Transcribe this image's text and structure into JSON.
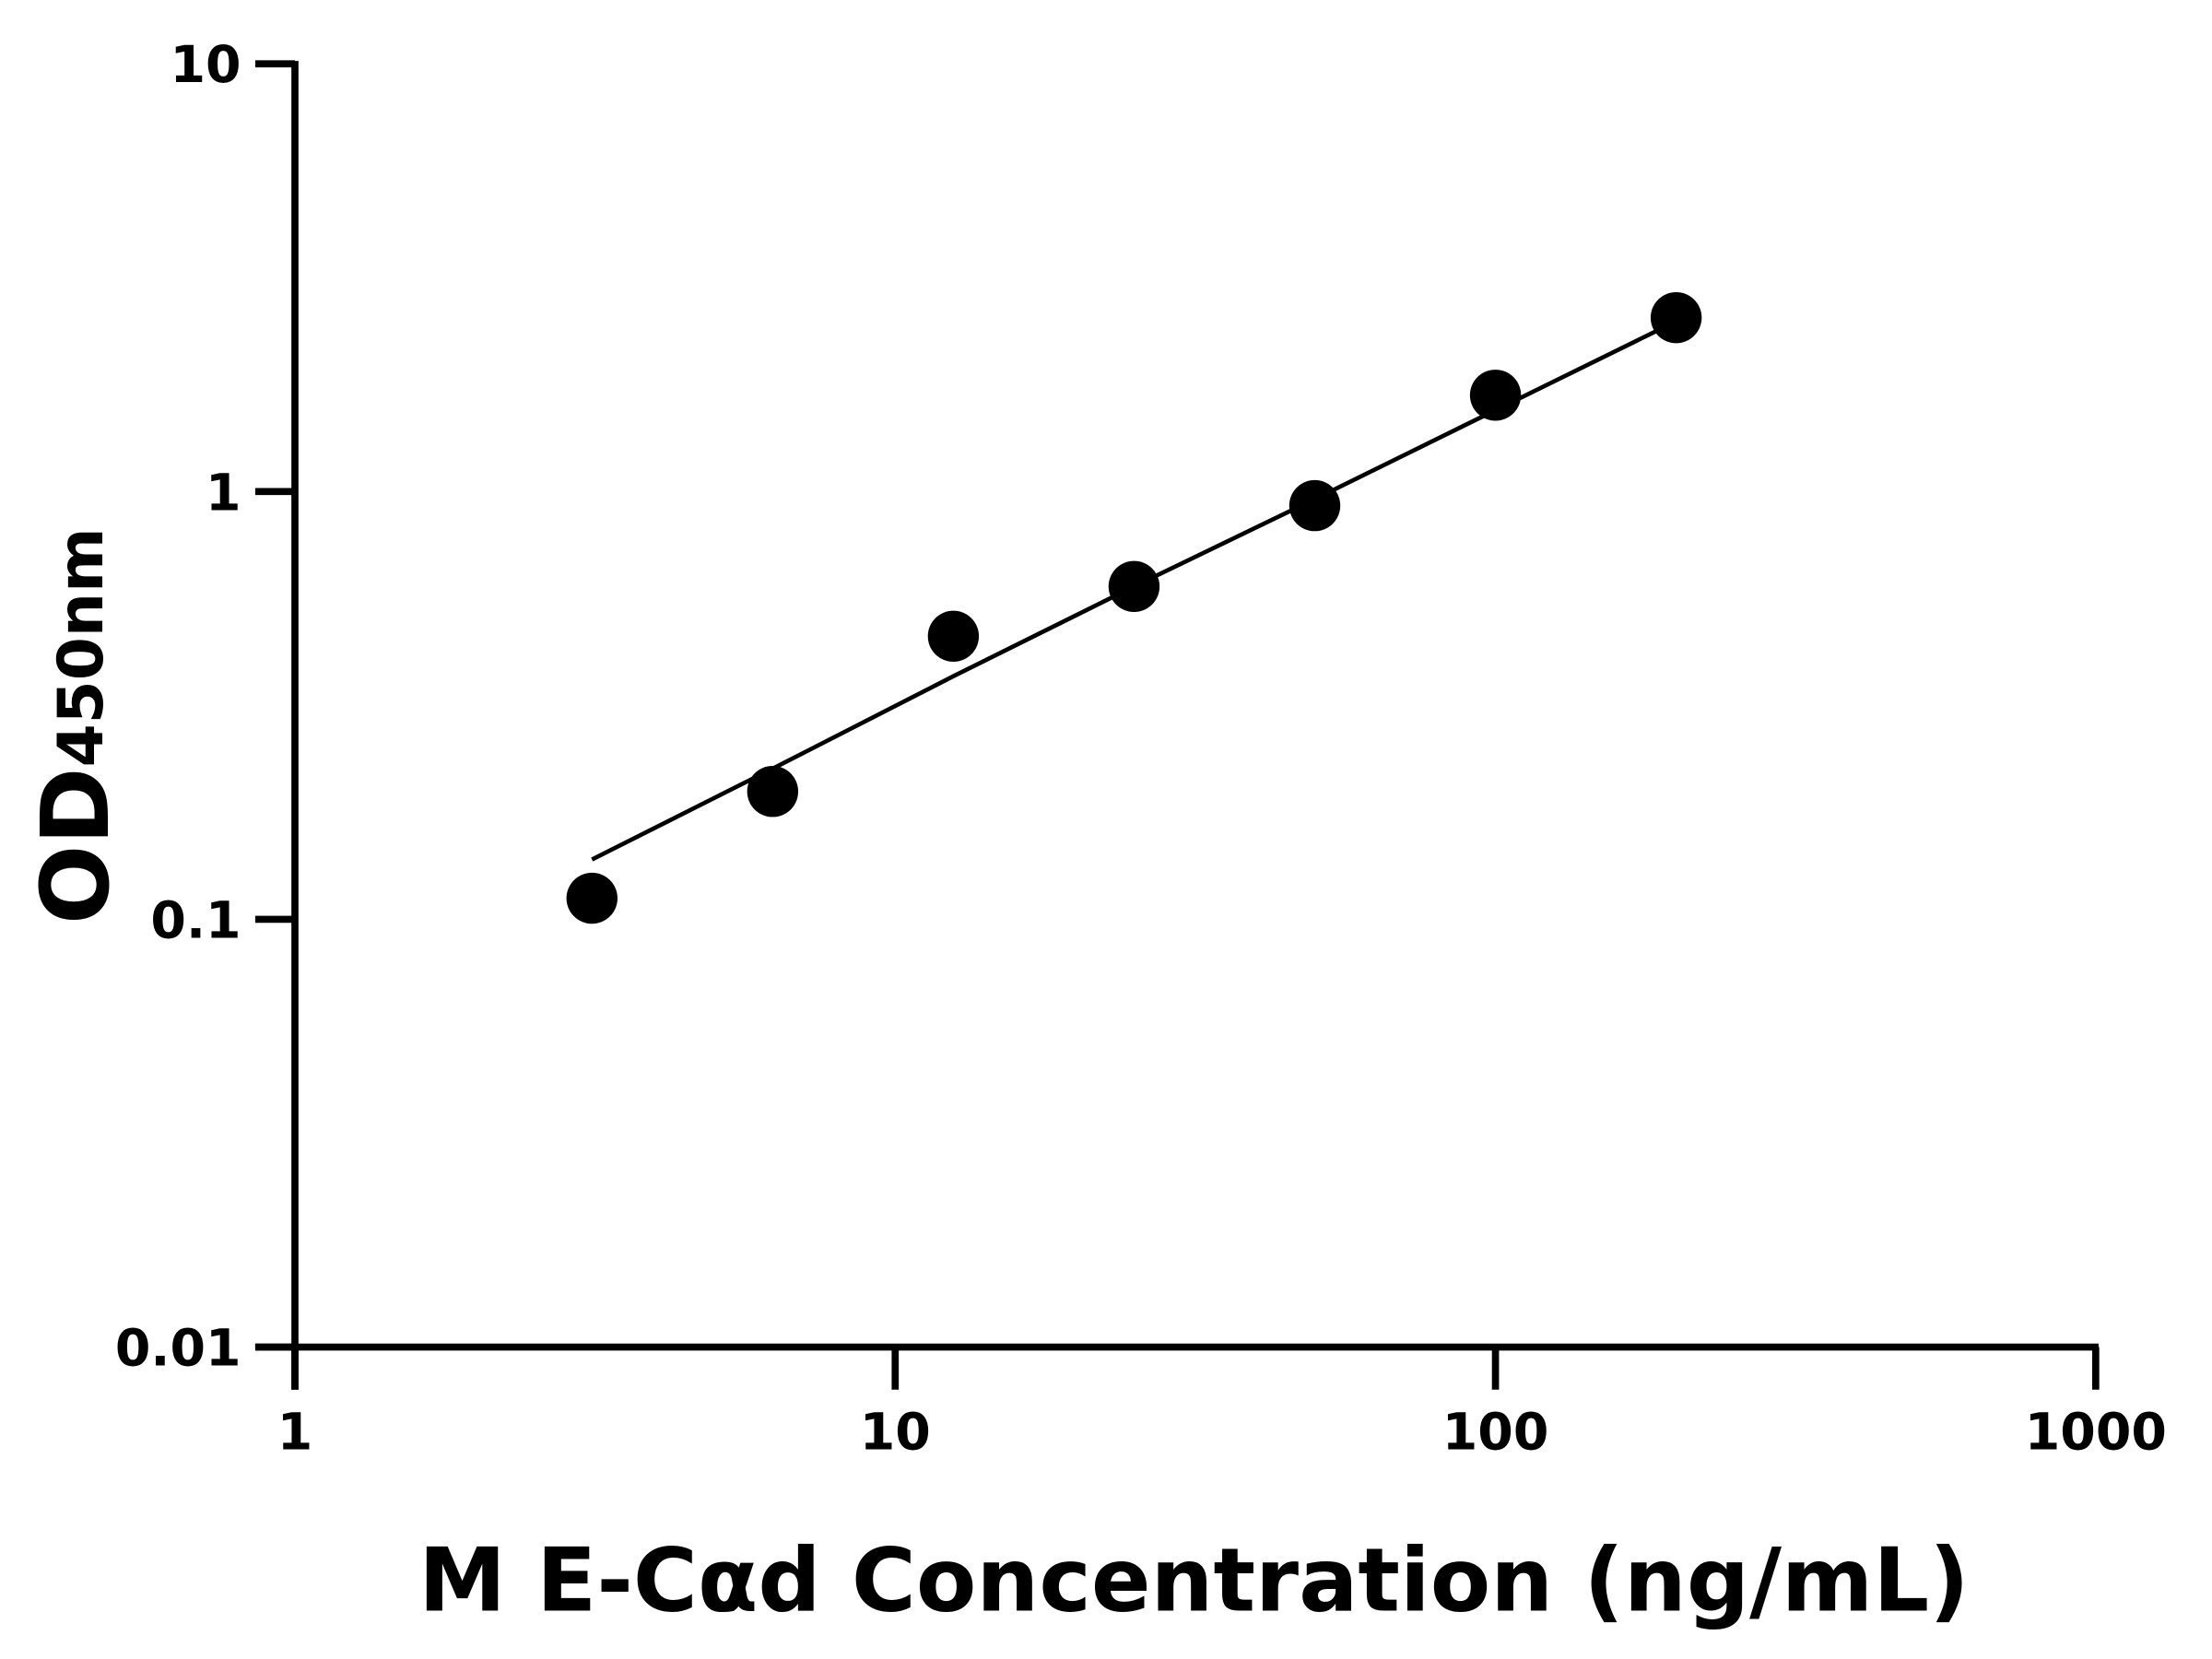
{
  "chart_data": {
    "type": "scatter",
    "title": "",
    "xlabel": "M E-Cαd Concentration (ng/mL)",
    "ylabel": {
      "main": "OD",
      "subscript": "450nm"
    },
    "xscale": "log",
    "yscale": "log",
    "xlim": [
      1,
      1000
    ],
    "ylim": [
      0.01,
      10
    ],
    "xticks": [
      {
        "value": 1,
        "label": "1"
      },
      {
        "value": 10,
        "label": "10"
      },
      {
        "value": 100,
        "label": "100"
      },
      {
        "value": 1000,
        "label": "1000"
      }
    ],
    "yticks": [
      {
        "value": 0.01,
        "label": "0.01"
      },
      {
        "value": 0.1,
        "label": "0.1"
      },
      {
        "value": 1,
        "label": "1"
      },
      {
        "value": 10,
        "label": "10"
      }
    ],
    "grid": false,
    "legend": "none",
    "series": [
      {
        "x": [
          3.125,
          6.25,
          12.5,
          25,
          50,
          100,
          200
        ],
        "y": [
          0.112,
          0.199,
          0.459,
          0.6,
          0.927,
          1.68,
          2.55
        ]
      }
    ],
    "fit_curve": {
      "x": [
        3.125,
        6.25,
        12.5,
        25,
        50,
        100,
        200
      ],
      "y": [
        0.138,
        0.225,
        0.37,
        0.6,
        0.96,
        1.55,
        2.5
      ]
    },
    "colors": {
      "marker": "#000000",
      "line": "#000000",
      "axes": "#000000"
    }
  }
}
